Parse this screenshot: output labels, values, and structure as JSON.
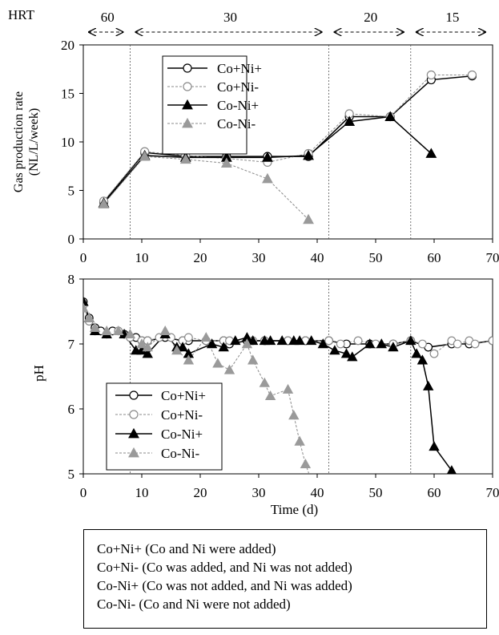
{
  "hrt": {
    "label": "HRT",
    "periods": [
      {
        "value": "60",
        "start": 0,
        "end": 8
      },
      {
        "value": "30",
        "start": 8,
        "end": 42
      },
      {
        "value": "20",
        "start": 42,
        "end": 56
      },
      {
        "value": "15",
        "start": 56,
        "end": 70
      }
    ]
  },
  "chart_data": [
    {
      "type": "line",
      "ylabel": "Gas production rate (NL/L/week)",
      "xlabel": "",
      "xlim": [
        0,
        70
      ],
      "ylim": [
        0,
        20
      ],
      "xticks": [
        0,
        10,
        20,
        30,
        40,
        50,
        60,
        70
      ],
      "yticks": [
        0,
        5,
        10,
        15,
        20
      ],
      "vlines": [
        8,
        42,
        56
      ],
      "legend_position": "top-center",
      "series": [
        {
          "name": "Co+Ni+",
          "x": [
            3.5,
            10.5,
            17.5,
            24.5,
            31.5,
            38.5,
            45.5,
            52.5,
            59.5,
            66.5
          ],
          "y": [
            3.8,
            8.9,
            8.5,
            8.5,
            8.5,
            8.5,
            12.6,
            12.6,
            16.4,
            16.8
          ]
        },
        {
          "name": "Co+Ni-",
          "x": [
            3.5,
            10.5,
            17.5,
            24.5,
            31.5,
            38.5,
            45.5,
            52.5,
            59.5,
            66.5
          ],
          "y": [
            3.9,
            9.0,
            8.6,
            8.3,
            7.9,
            8.8,
            12.9,
            12.6,
            16.9,
            16.9
          ]
        },
        {
          "name": "Co-Ni+",
          "x": [
            3.5,
            10.5,
            17.5,
            24.5,
            31.5,
            38.5,
            45.5,
            52.5,
            59.5
          ],
          "y": [
            3.7,
            8.6,
            8.4,
            8.4,
            8.4,
            8.6,
            12.1,
            12.6,
            8.8
          ]
        },
        {
          "name": "Co-Ni-",
          "x": [
            3.5,
            10.5,
            17.5,
            24.5,
            31.5,
            38.5
          ],
          "y": [
            3.6,
            8.5,
            8.2,
            7.8,
            6.2,
            2.0
          ]
        }
      ]
    },
    {
      "type": "line",
      "ylabel": "pH",
      "xlabel": "Time (d)",
      "xlim": [
        0,
        70
      ],
      "ylim": [
        5,
        8
      ],
      "xticks": [
        0,
        10,
        20,
        30,
        40,
        50,
        60,
        70
      ],
      "yticks": [
        5,
        6,
        7,
        8
      ],
      "vlines": [
        8,
        42,
        56
      ],
      "legend_position": "bottom-left",
      "series": [
        {
          "name": "Co+Ni+",
          "x": [
            0,
            1,
            2,
            3,
            5,
            7,
            9,
            10,
            11,
            14,
            17,
            18,
            21,
            24,
            25,
            28,
            31,
            35,
            38,
            42,
            45,
            49,
            53,
            56,
            59,
            63,
            66,
            70
          ],
          "y": [
            7.65,
            7.4,
            7.25,
            7.2,
            7.2,
            7.15,
            7.1,
            7.05,
            7.05,
            7.1,
            7.05,
            7.05,
            7.05,
            7.05,
            7.0,
            7.05,
            7.05,
            7.05,
            7.05,
            7.05,
            7.0,
            7.0,
            7.0,
            7.05,
            6.95,
            7.0,
            7.0,
            7.05
          ]
        },
        {
          "name": "Co+Ni-",
          "x": [
            0,
            1,
            2,
            4,
            6,
            8,
            10,
            11,
            13,
            15,
            17,
            18,
            21,
            24,
            25,
            29,
            31,
            35,
            38,
            42,
            44,
            47,
            50,
            53,
            56,
            58,
            60,
            63,
            64,
            66,
            67,
            70
          ],
          "y": [
            7.6,
            7.35,
            7.2,
            7.15,
            7.2,
            7.1,
            7.05,
            7.05,
            7.1,
            7.1,
            7.05,
            7.1,
            7.05,
            7.05,
            7.05,
            7.05,
            7.05,
            7.05,
            7.05,
            7.05,
            7.0,
            7.05,
            7.0,
            7.0,
            7.05,
            7.0,
            6.85,
            7.05,
            7.0,
            7.05,
            7.0,
            7.05
          ]
        },
        {
          "name": "Co-Ni+",
          "x": [
            0,
            1,
            2,
            4,
            7,
            9,
            10,
            11,
            14,
            16,
            17,
            18,
            22,
            24,
            26,
            28,
            29,
            31,
            32,
            34,
            36,
            37,
            39,
            41,
            43,
            45,
            46,
            49,
            51,
            53,
            56,
            57,
            58,
            59,
            60,
            63
          ],
          "y": [
            7.65,
            7.4,
            7.2,
            7.15,
            7.15,
            6.9,
            6.9,
            6.85,
            7.15,
            6.95,
            6.95,
            6.85,
            7.0,
            6.95,
            7.05,
            7.1,
            7.05,
            7.05,
            7.05,
            7.05,
            7.05,
            7.05,
            7.05,
            7.0,
            6.9,
            6.85,
            6.8,
            7.0,
            7.0,
            6.95,
            7.05,
            6.85,
            6.75,
            6.35,
            5.42,
            5.05
          ]
        },
        {
          "name": "Co-Ni-",
          "x": [
            0,
            1,
            2,
            4,
            6,
            8,
            10,
            11,
            14,
            16,
            18,
            21,
            23,
            25,
            28,
            29,
            31,
            32,
            35,
            36,
            37,
            38,
            39
          ],
          "y": [
            7.55,
            7.4,
            7.25,
            7.2,
            7.2,
            7.15,
            7.0,
            6.95,
            7.2,
            6.9,
            6.75,
            7.1,
            6.7,
            6.6,
            7.0,
            6.75,
            6.4,
            6.2,
            6.3,
            5.9,
            5.5,
            5.15,
            4.9
          ]
        }
      ]
    }
  ],
  "notes": [
    "Co+Ni+ (Co and Ni were added)",
    "Co+Ni- (Co was added, and Ni was not added)",
    "Co-Ni+  (Co was not added, and Ni was added)",
    "Co-Ni- (Co and Ni were not added)"
  ]
}
